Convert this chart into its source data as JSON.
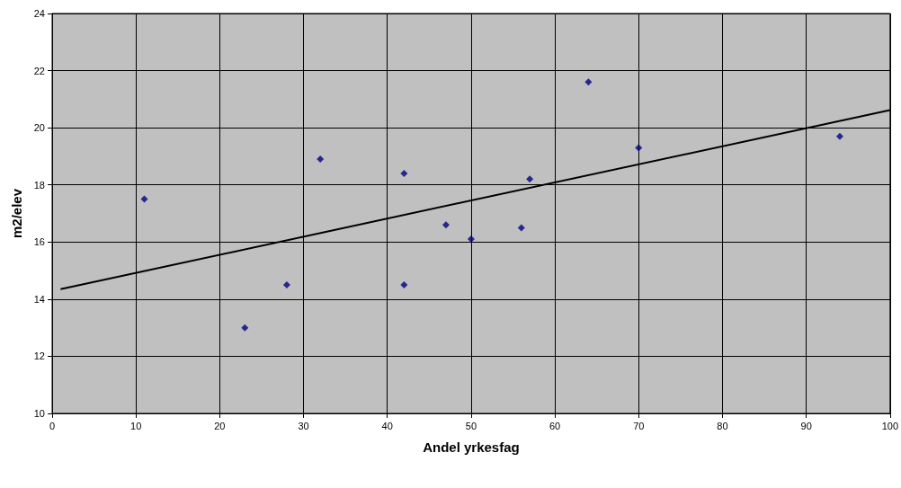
{
  "chart_data": {
    "type": "scatter",
    "xlabel": "Andel yrkesfag",
    "ylabel": "m2/elev",
    "xlim": [
      0,
      100
    ],
    "xticks": [
      0,
      10,
      20,
      30,
      40,
      50,
      60,
      70,
      80,
      90,
      100
    ],
    "ylim": [
      10,
      24
    ],
    "yticks": [
      10,
      12,
      14,
      16,
      18,
      20,
      22,
      24
    ],
    "grid": true,
    "marker": "diamond",
    "series": [
      {
        "color": "#000080",
        "x": [
          11,
          23,
          28,
          32,
          42,
          42,
          47,
          50,
          56,
          57,
          64,
          70,
          94
        ],
        "values": [
          17.5,
          13.0,
          14.5,
          18.9,
          18.4,
          14.5,
          16.6,
          16.1,
          16.5,
          18.2,
          21.6,
          19.3,
          19.7
        ]
      },
      {
        "type": "line",
        "color": "#000000",
        "marker": "none",
        "line_style": "solid",
        "x": [
          1,
          100
        ],
        "values": [
          14.35,
          20.62
        ]
      }
    ]
  }
}
